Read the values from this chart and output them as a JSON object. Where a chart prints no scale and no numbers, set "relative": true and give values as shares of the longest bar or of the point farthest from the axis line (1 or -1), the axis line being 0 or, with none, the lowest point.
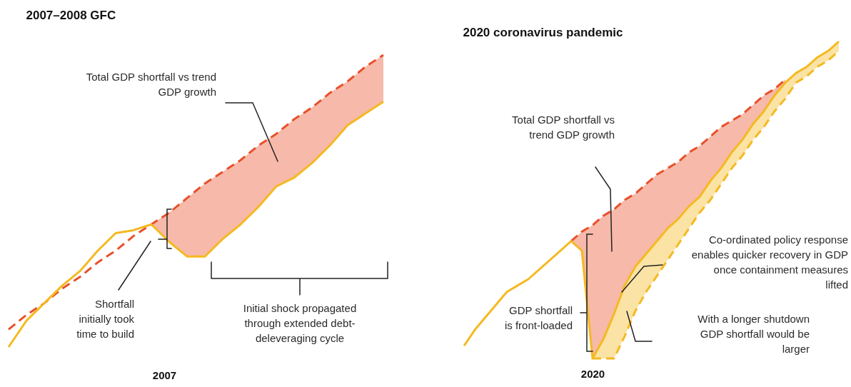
{
  "chart_data": [
    {
      "type": "line",
      "title": "2007–2008 GFC",
      "xlabel": "2007",
      "relative": true,
      "tick_labels": false,
      "categories": [
        null,
        null,
        null,
        null,
        null,
        null,
        null,
        null,
        null,
        null,
        null,
        null,
        null,
        null,
        null,
        null,
        null,
        null,
        null,
        null,
        null,
        null
      ],
      "series": [
        {
          "color": "#e8502a",
          "line_style": "dashed",
          "values": [
            0.06,
            0.11,
            0.15,
            0.2,
            0.24,
            0.29,
            0.33,
            0.38,
            0.42,
            0.46,
            0.51,
            0.56,
            0.6,
            0.64,
            0.69,
            0.73,
            0.78,
            0.82,
            0.87,
            0.91,
            0.96,
            1
          ],
          "lower": [
            null,
            null,
            null,
            null,
            null,
            null,
            null,
            null,
            0.42,
            0.36,
            0.31,
            0.31,
            0.37,
            0.42,
            0.48,
            0.55,
            0.58,
            0.63,
            0.69,
            0.76,
            0.8,
            0.84
          ],
          "upper": [
            null,
            null,
            null,
            null,
            null,
            null,
            null,
            null,
            0.42,
            0.46,
            0.51,
            0.56,
            0.6,
            0.64,
            0.69,
            0.73,
            0.78,
            0.82,
            0.87,
            0.91,
            0.96,
            1
          ]
        },
        {
          "color": "#f5b921",
          "line_style": "solid",
          "values": [
            0,
            0.09,
            0.15,
            0.21,
            0.26,
            0.33,
            0.39,
            0.4,
            0.42,
            0.36,
            0.31,
            0.31,
            0.37,
            0.42,
            0.48,
            0.55,
            0.58,
            0.63,
            0.69,
            0.76,
            0.8,
            0.84
          ]
        }
      ],
      "annotations": [
        "Total GDP shortfall vs trend\nGDP growth",
        "Shortfall\ninitially took\ntime to build",
        "Initial shock propagated\nthrough extended debt-\ndeleveraging cycle"
      ]
    },
    {
      "type": "line",
      "title": "2020 coronavirus pandemic",
      "xlabel": "2020",
      "relative": true,
      "tick_labels": false,
      "categories": [
        null,
        null,
        null,
        null,
        null,
        null,
        null,
        null,
        null,
        null,
        null,
        null,
        null,
        null,
        null,
        null,
        null,
        null,
        null,
        null,
        null,
        null,
        null,
        null,
        null,
        null,
        null,
        null,
        null,
        null,
        null,
        null,
        null,
        null,
        null,
        null
      ],
      "series": [
        {
          "color": "#e8502a",
          "line_style": "dashed",
          "values": [
            null,
            null,
            null,
            null,
            null,
            null,
            null,
            null,
            null,
            null,
            0.37,
            0.4,
            0.42,
            0.45,
            0.47,
            0.5,
            0.52,
            0.55,
            0.58,
            0.6,
            0.62,
            0.65,
            0.67,
            0.7,
            0.73,
            0.75,
            0.77,
            0.8,
            0.83,
            0.85,
            0.88,
            null,
            null,
            null,
            null,
            null
          ],
          "lower": [
            null,
            null,
            null,
            null,
            null,
            null,
            null,
            null,
            null,
            null,
            0.37,
            0.34,
            0,
            0.06,
            0.14,
            0.23,
            0.29,
            0.33,
            0.37,
            0.41,
            0.44,
            0.48,
            0.51,
            0.56,
            0.6,
            0.65,
            0.69,
            0.74,
            0.78,
            0.83,
            0.87,
            null,
            null,
            null,
            null,
            null
          ],
          "upper": [
            null,
            null,
            null,
            null,
            null,
            null,
            null,
            null,
            null,
            null,
            0.37,
            0.4,
            0.42,
            0.45,
            0.47,
            0.5,
            0.52,
            0.55,
            0.58,
            0.6,
            0.62,
            0.65,
            0.67,
            0.7,
            0.73,
            0.75,
            0.77,
            0.8,
            0.83,
            0.85,
            0.88,
            null,
            null,
            null,
            null,
            null
          ]
        },
        {
          "color": "#f5b921",
          "line_style": "dashed",
          "values": [
            null,
            null,
            null,
            null,
            null,
            null,
            null,
            null,
            null,
            null,
            null,
            null,
            0,
            0,
            0,
            0.07,
            0.15,
            0.21,
            0.26,
            0.31,
            0.36,
            0.41,
            0.46,
            0.5,
            0.55,
            0.6,
            0.64,
            0.69,
            0.73,
            0.78,
            0.82,
            0.87,
            0.89,
            0.92,
            0.94,
            0.97
          ],
          "lower": [
            null,
            null,
            null,
            null,
            null,
            null,
            null,
            null,
            null,
            null,
            null,
            null,
            0,
            0,
            0,
            0.07,
            0.15,
            0.21,
            0.26,
            0.31,
            0.36,
            0.41,
            0.46,
            0.5,
            0.55,
            0.6,
            0.64,
            0.69,
            0.73,
            0.78,
            0.82,
            0.87,
            0.89,
            0.92,
            0.94,
            0.97
          ],
          "upper": [
            null,
            null,
            null,
            null,
            null,
            null,
            null,
            null,
            null,
            null,
            null,
            null,
            0,
            0.06,
            0.14,
            0.23,
            0.29,
            0.33,
            0.37,
            0.41,
            0.44,
            0.48,
            0.51,
            0.56,
            0.6,
            0.65,
            0.69,
            0.74,
            0.78,
            0.83,
            0.87,
            0.9,
            0.92,
            0.95,
            0.97,
            1
          ]
        },
        {
          "color": "#f5b921",
          "line_style": "solid",
          "values": [
            0.04,
            0.09,
            0.13,
            0.17,
            0.21,
            0.23,
            0.25,
            0.28,
            0.31,
            0.34,
            0.37,
            0.34,
            0,
            0.06,
            0.14,
            0.23,
            0.29,
            0.33,
            0.37,
            0.41,
            0.44,
            0.48,
            0.51,
            0.56,
            0.6,
            0.65,
            0.69,
            0.74,
            0.78,
            0.83,
            0.87,
            0.9,
            0.92,
            0.95,
            0.97,
            1
          ]
        }
      ],
      "annotations": [
        "Total GDP shortfall vs\ntrend GDP growth",
        "Co-ordinated policy response\nenables quicker recovery in GDP\nonce containment measures\nlifted",
        "GDP shortfall\nis front-loaded",
        "With a longer shutdown\nGDP shortfall would be\nlarger"
      ]
    }
  ]
}
